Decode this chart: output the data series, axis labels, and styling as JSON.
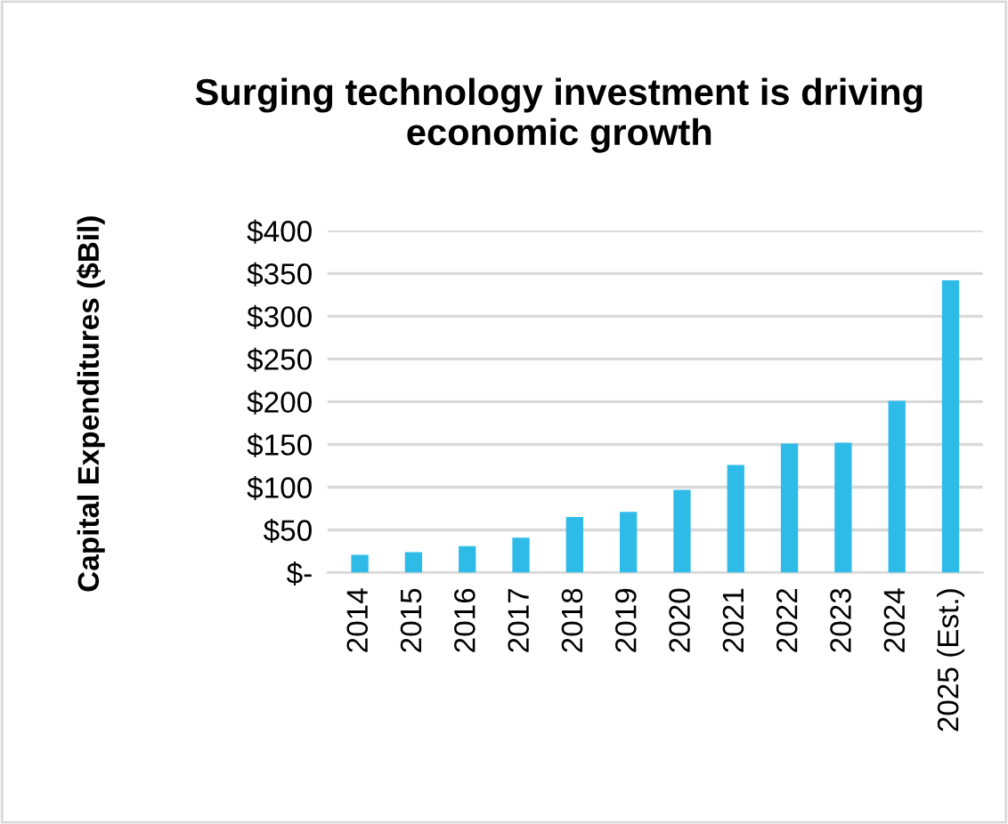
{
  "chart_data": {
    "type": "bar",
    "title": "Surging technology investment is driving economic growth",
    "ylabel": "Capital Expenditures ($Bil)",
    "categories": [
      "2014",
      "2015",
      "2016",
      "2017",
      "2018",
      "2019",
      "2020",
      "2021",
      "2022",
      "2023",
      "2024",
      "2025 (Est.)"
    ],
    "values": [
      21,
      24,
      31,
      41,
      65,
      71,
      97,
      126,
      151,
      152,
      201,
      342
    ],
    "color": "#2ebbe8",
    "ylim": [
      0,
      400
    ],
    "yticks": [
      {
        "value": 0,
        "label": "$-"
      },
      {
        "value": 50,
        "label": "$50"
      },
      {
        "value": 100,
        "label": "$100"
      },
      {
        "value": 150,
        "label": "$150"
      },
      {
        "value": 200,
        "label": "$200"
      },
      {
        "value": 250,
        "label": "$250"
      },
      {
        "value": 300,
        "label": "$300"
      },
      {
        "value": 350,
        "label": "$350"
      },
      {
        "value": 400,
        "label": "$400"
      }
    ],
    "grid": "y",
    "legend": false
  }
}
